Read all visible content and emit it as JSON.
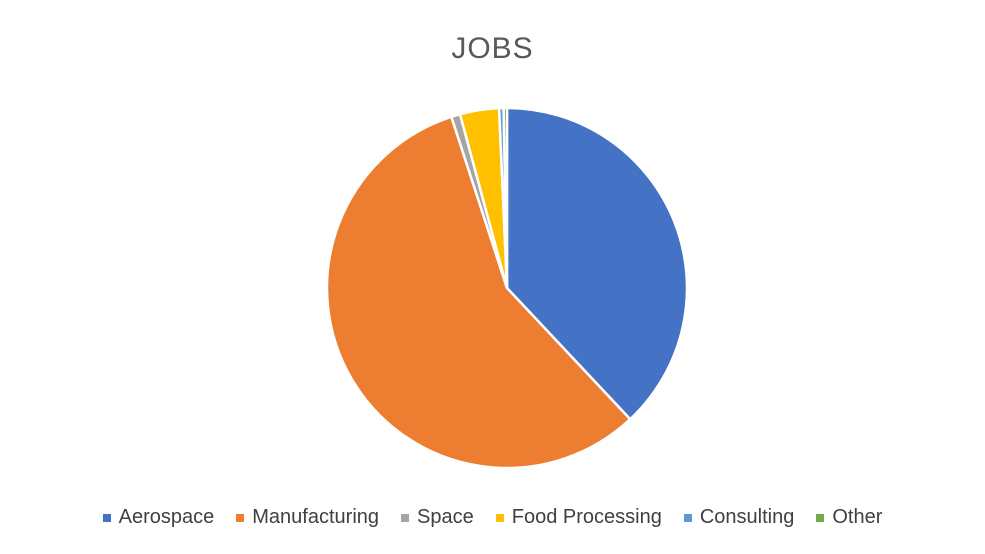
{
  "chart_data": {
    "type": "pie",
    "title": "JOBS",
    "categories": [
      "Aerospace",
      "Manufacturing",
      "Space",
      "Food Processing",
      "Consulting",
      "Other"
    ],
    "values": [
      38.0,
      57.0,
      0.8,
      3.5,
      0.4,
      0.3
    ],
    "colors": [
      "#4472C4",
      "#ED7D31",
      "#A5A5A5",
      "#FFC000",
      "#5B9BD5",
      "#70AD47"
    ],
    "legend_position": "bottom",
    "start_angle": "top",
    "direction": "clockwise"
  }
}
